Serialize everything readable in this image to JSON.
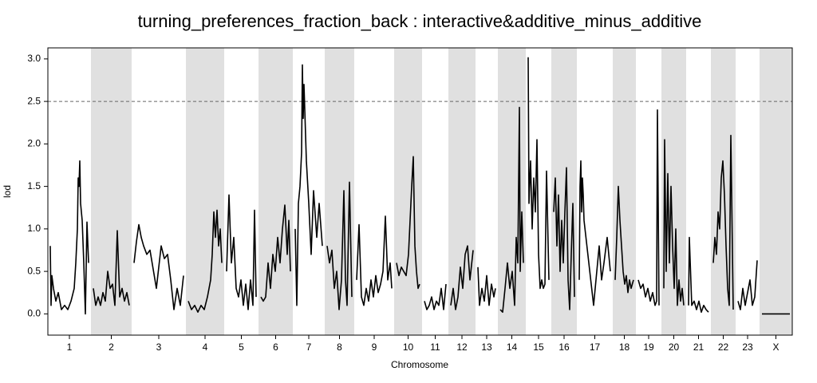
{
  "chart_data": {
    "type": "line",
    "title": "turning_preferences_fraction_back : interactive&additive_minus_additive",
    "xlabel": "Chromosome",
    "ylabel": "lod",
    "ylim": [
      -0.25,
      3.13
    ],
    "yticks": [
      {
        "value": 0,
        "label": "0.0"
      },
      0.5,
      {
        "value": 1,
        "label": "1.0"
      },
      1.5,
      {
        "value": 2,
        "label": "2.0"
      },
      2.5,
      {
        "value": 3,
        "label": "3.0"
      }
    ],
    "threshold": 2.5,
    "color": "#000000",
    "shade_color": "#e0e0e0",
    "chromosomes": [
      {
        "name": "1",
        "x": [
          0,
          1,
          2,
          4,
          7,
          10,
          14,
          18,
          22,
          26,
          30,
          32,
          34,
          35,
          36,
          37,
          38,
          40,
          42,
          44,
          46,
          48
        ],
        "values": [
          0.8,
          0.1,
          0.45,
          0.3,
          0.15,
          0.25,
          0.05,
          0.1,
          0.05,
          0.15,
          0.3,
          0.6,
          1.0,
          1.6,
          1.5,
          1.8,
          1.3,
          1.1,
          0.6,
          0.0,
          1.08,
          0.6
        ]
      },
      {
        "name": "2",
        "x": [
          0,
          3,
          6,
          9,
          12,
          15,
          18,
          21,
          24,
          27,
          30,
          33,
          36,
          39,
          42,
          45
        ],
        "values": [
          0.3,
          0.1,
          0.2,
          0.1,
          0.25,
          0.15,
          0.5,
          0.3,
          0.35,
          0.1,
          0.98,
          0.2,
          0.3,
          0.15,
          0.25,
          0.1
        ]
      },
      {
        "name": "3",
        "x": [
          0,
          3,
          6,
          9,
          12,
          16,
          20,
          28,
          34,
          38,
          42,
          46,
          50,
          54,
          58,
          62
        ],
        "values": [
          0.6,
          0.85,
          1.05,
          0.9,
          0.8,
          0.7,
          0.75,
          0.3,
          0.8,
          0.65,
          0.7,
          0.4,
          0.05,
          0.3,
          0.1,
          0.45
        ]
      },
      {
        "name": "4",
        "x": [
          0,
          4,
          8,
          12,
          16,
          20,
          24,
          28,
          30,
          32,
          34,
          36,
          38,
          40,
          42
        ],
        "values": [
          0.15,
          0.05,
          0.1,
          0.02,
          0.1,
          0.05,
          0.2,
          0.4,
          0.7,
          1.2,
          0.9,
          1.22,
          0.8,
          1.0,
          0.6
        ]
      },
      {
        "name": "5",
        "x": [
          0,
          3,
          6,
          9,
          12,
          15,
          18,
          21,
          24,
          27,
          30,
          33,
          35,
          37
        ],
        "values": [
          0.5,
          1.4,
          0.6,
          0.9,
          0.3,
          0.2,
          0.4,
          0.1,
          0.35,
          0.05,
          0.4,
          0.1,
          1.22,
          0.2
        ]
      },
      {
        "name": "6",
        "x": [
          0,
          3,
          6,
          9,
          12,
          15,
          18,
          21,
          24,
          27,
          30,
          33,
          35,
          37
        ],
        "values": [
          0.2,
          0.15,
          0.2,
          0.6,
          0.3,
          0.7,
          0.5,
          0.9,
          0.6,
          1.0,
          1.28,
          0.7,
          1.1,
          0.5
        ]
      },
      {
        "name": "7",
        "x": [
          0,
          2,
          4,
          6,
          8,
          9,
          10,
          11,
          12,
          14,
          17,
          20,
          23,
          27,
          30,
          34
        ],
        "values": [
          1.0,
          0.1,
          1.3,
          1.5,
          1.9,
          2.93,
          2.3,
          2.7,
          2.4,
          1.8,
          1.3,
          0.7,
          1.45,
          0.9,
          1.3,
          0.8
        ]
      },
      {
        "name": "8",
        "x": [
          0,
          3,
          6,
          9,
          12,
          15,
          18,
          21,
          23,
          25,
          28,
          31
        ],
        "values": [
          0.8,
          0.6,
          0.75,
          0.3,
          0.5,
          0.05,
          0.4,
          1.45,
          0.4,
          0.1,
          1.55,
          0.2
        ]
      },
      {
        "name": "9",
        "x": [
          0,
          3,
          6,
          9,
          12,
          15,
          18,
          21,
          24,
          27,
          30,
          33,
          36,
          39,
          42,
          44
        ],
        "values": [
          0.4,
          1.05,
          0.2,
          0.1,
          0.3,
          0.15,
          0.4,
          0.2,
          0.45,
          0.25,
          0.35,
          0.5,
          1.15,
          0.4,
          0.6,
          0.3
        ]
      },
      {
        "name": "10",
        "x": [
          0,
          3,
          6,
          9,
          12,
          15,
          17,
          19,
          21,
          23,
          25,
          27,
          29
        ],
        "values": [
          0.6,
          0.45,
          0.55,
          0.5,
          0.45,
          0.7,
          1.1,
          1.5,
          1.85,
          0.8,
          0.5,
          0.3,
          0.35
        ]
      },
      {
        "name": "11",
        "x": [
          0,
          3,
          6,
          9,
          12,
          15,
          18,
          21,
          24,
          27
        ],
        "values": [
          0.15,
          0.05,
          0.1,
          0.2,
          0.05,
          0.15,
          0.1,
          0.3,
          0.05,
          0.35
        ]
      },
      {
        "name": "12",
        "x": [
          0,
          3,
          6,
          9,
          12,
          15,
          18,
          21,
          24,
          28
        ],
        "values": [
          0.1,
          0.3,
          0.05,
          0.2,
          0.55,
          0.3,
          0.7,
          0.8,
          0.4,
          0.75
        ]
      },
      {
        "name": "13",
        "x": [
          0,
          2,
          5,
          8,
          11,
          14,
          17,
          20,
          22
        ],
        "values": [
          0.55,
          0.1,
          0.3,
          0.15,
          0.45,
          0.1,
          0.35,
          0.2,
          0.3
        ]
      },
      {
        "name": "14",
        "x": [
          0,
          3,
          6,
          9,
          12,
          15,
          18,
          20,
          22,
          24,
          25,
          27,
          29
        ],
        "values": [
          0.05,
          0.02,
          0.3,
          0.6,
          0.3,
          0.5,
          0.1,
          0.9,
          0.6,
          2.43,
          0.5,
          1.2,
          0.6
        ]
      },
      {
        "name": "15",
        "x": [
          0,
          1,
          3,
          5,
          7,
          9,
          11,
          13,
          15,
          17,
          19,
          21,
          23,
          26
        ],
        "values": [
          3.02,
          1.3,
          1.8,
          1.0,
          1.6,
          1.2,
          2.05,
          0.7,
          0.3,
          0.4,
          0.3,
          0.35,
          1.68,
          0.4
        ]
      },
      {
        "name": "16",
        "x": [
          0,
          2,
          4,
          6,
          8,
          10,
          12,
          14,
          16,
          18,
          20,
          22,
          24,
          26
        ],
        "values": [
          1.2,
          1.6,
          0.8,
          1.4,
          0.5,
          1.1,
          0.6,
          1.2,
          1.72,
          0.4,
          0.05,
          0.7,
          1.3,
          0.2
        ]
      },
      {
        "name": "17",
        "x": [
          0,
          1,
          2,
          3,
          4,
          5,
          6,
          18,
          22,
          25,
          28,
          31,
          35,
          39
        ],
        "values": [
          0.4,
          1.5,
          1.8,
          1.2,
          1.6,
          1.4,
          1.1,
          0.1,
          0.5,
          0.8,
          0.4,
          0.6,
          0.9,
          0.5
        ]
      },
      {
        "name": "18",
        "x": [
          0,
          2,
          4,
          6,
          8,
          10,
          12,
          14,
          16,
          18,
          20,
          23
        ],
        "values": [
          0.4,
          0.9,
          1.5,
          1.1,
          0.8,
          0.5,
          0.35,
          0.45,
          0.25,
          0.4,
          0.3,
          0.4
        ]
      },
      {
        "name": "19",
        "x": [
          0,
          3,
          6,
          9,
          12,
          15,
          18,
          21,
          23,
          24,
          26
        ],
        "values": [
          0.4,
          0.3,
          0.35,
          0.2,
          0.3,
          0.15,
          0.25,
          0.1,
          0.15,
          2.4,
          0.1
        ]
      },
      {
        "name": "20",
        "x": [
          0,
          1,
          3,
          5,
          7,
          9,
          11,
          13,
          15,
          17,
          19,
          21,
          23,
          25
        ],
        "values": [
          0.3,
          2.05,
          0.5,
          1.65,
          0.6,
          1.5,
          0.8,
          0.3,
          1.0,
          0.1,
          0.4,
          0.15,
          0.3,
          0.1
        ]
      },
      {
        "name": "21",
        "x": [
          0,
          1,
          4,
          7,
          10,
          13,
          16,
          19,
          22,
          25
        ],
        "values": [
          0.1,
          0.9,
          0.1,
          0.15,
          0.05,
          0.15,
          0.02,
          0.1,
          0.05,
          0.02
        ]
      },
      {
        "name": "22",
        "x": [
          0,
          2,
          4,
          6,
          8,
          10,
          12,
          14,
          16,
          18,
          20,
          22,
          25
        ],
        "values": [
          0.6,
          0.9,
          0.7,
          1.2,
          1.0,
          1.6,
          1.8,
          1.4,
          0.8,
          0.3,
          0.1,
          2.1,
          0.05
        ]
      },
      {
        "name": "23",
        "x": [
          0,
          3,
          6,
          9,
          12,
          15,
          18,
          21,
          24
        ],
        "values": [
          0.15,
          0.05,
          0.3,
          0.1,
          0.25,
          0.4,
          0.1,
          0.2,
          0.63
        ]
      },
      {
        "name": "X",
        "x": [
          0,
          35
        ],
        "values": [
          0,
          0
        ]
      }
    ]
  }
}
